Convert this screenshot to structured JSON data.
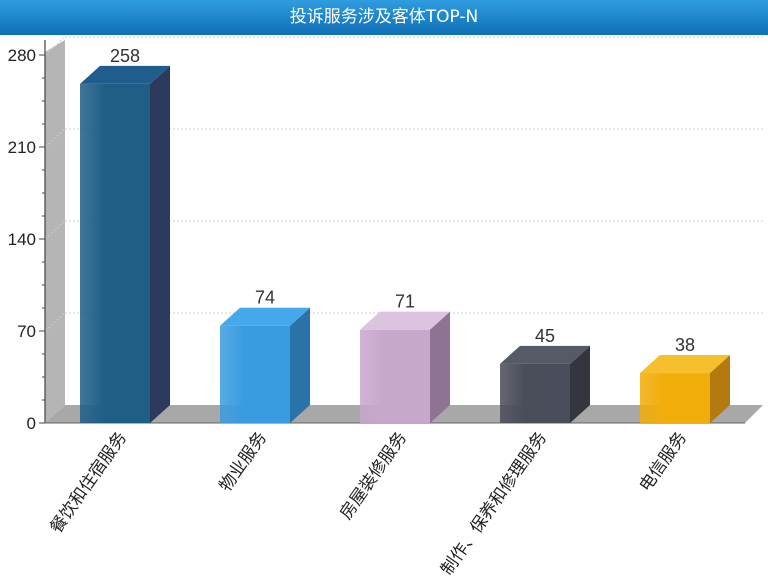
{
  "header": {
    "title": "投诉服务涉及客体TOP-N"
  },
  "chart_data": {
    "type": "bar",
    "title": "投诉服务涉及客体TOP-N",
    "categories": [
      "餐饮和住宿服务",
      "物业服务",
      "房屋装修服务",
      "制作、保养和修理服务",
      "电信服务"
    ],
    "values": [
      258,
      74,
      71,
      45,
      38
    ],
    "ylim": [
      0,
      280
    ],
    "yticks": [
      0,
      70,
      140,
      210,
      280
    ],
    "grid": true,
    "bar_colors": [
      {
        "front": "#1f5f86",
        "side": "#2c3a5c",
        "top": "#1e5d8c"
      },
      {
        "front": "#3a9ce0",
        "side": "#2a73a8",
        "top": "#44a8ea"
      },
      {
        "front": "#c7a7cc",
        "side": "#8e7394",
        "top": "#dcc4e0"
      },
      {
        "front": "#4a4d5a",
        "side": "#34363f",
        "top": "#565a66"
      },
      {
        "front": "#f1ad0a",
        "side": "#b47a0f",
        "top": "#f6c02c"
      }
    ]
  }
}
